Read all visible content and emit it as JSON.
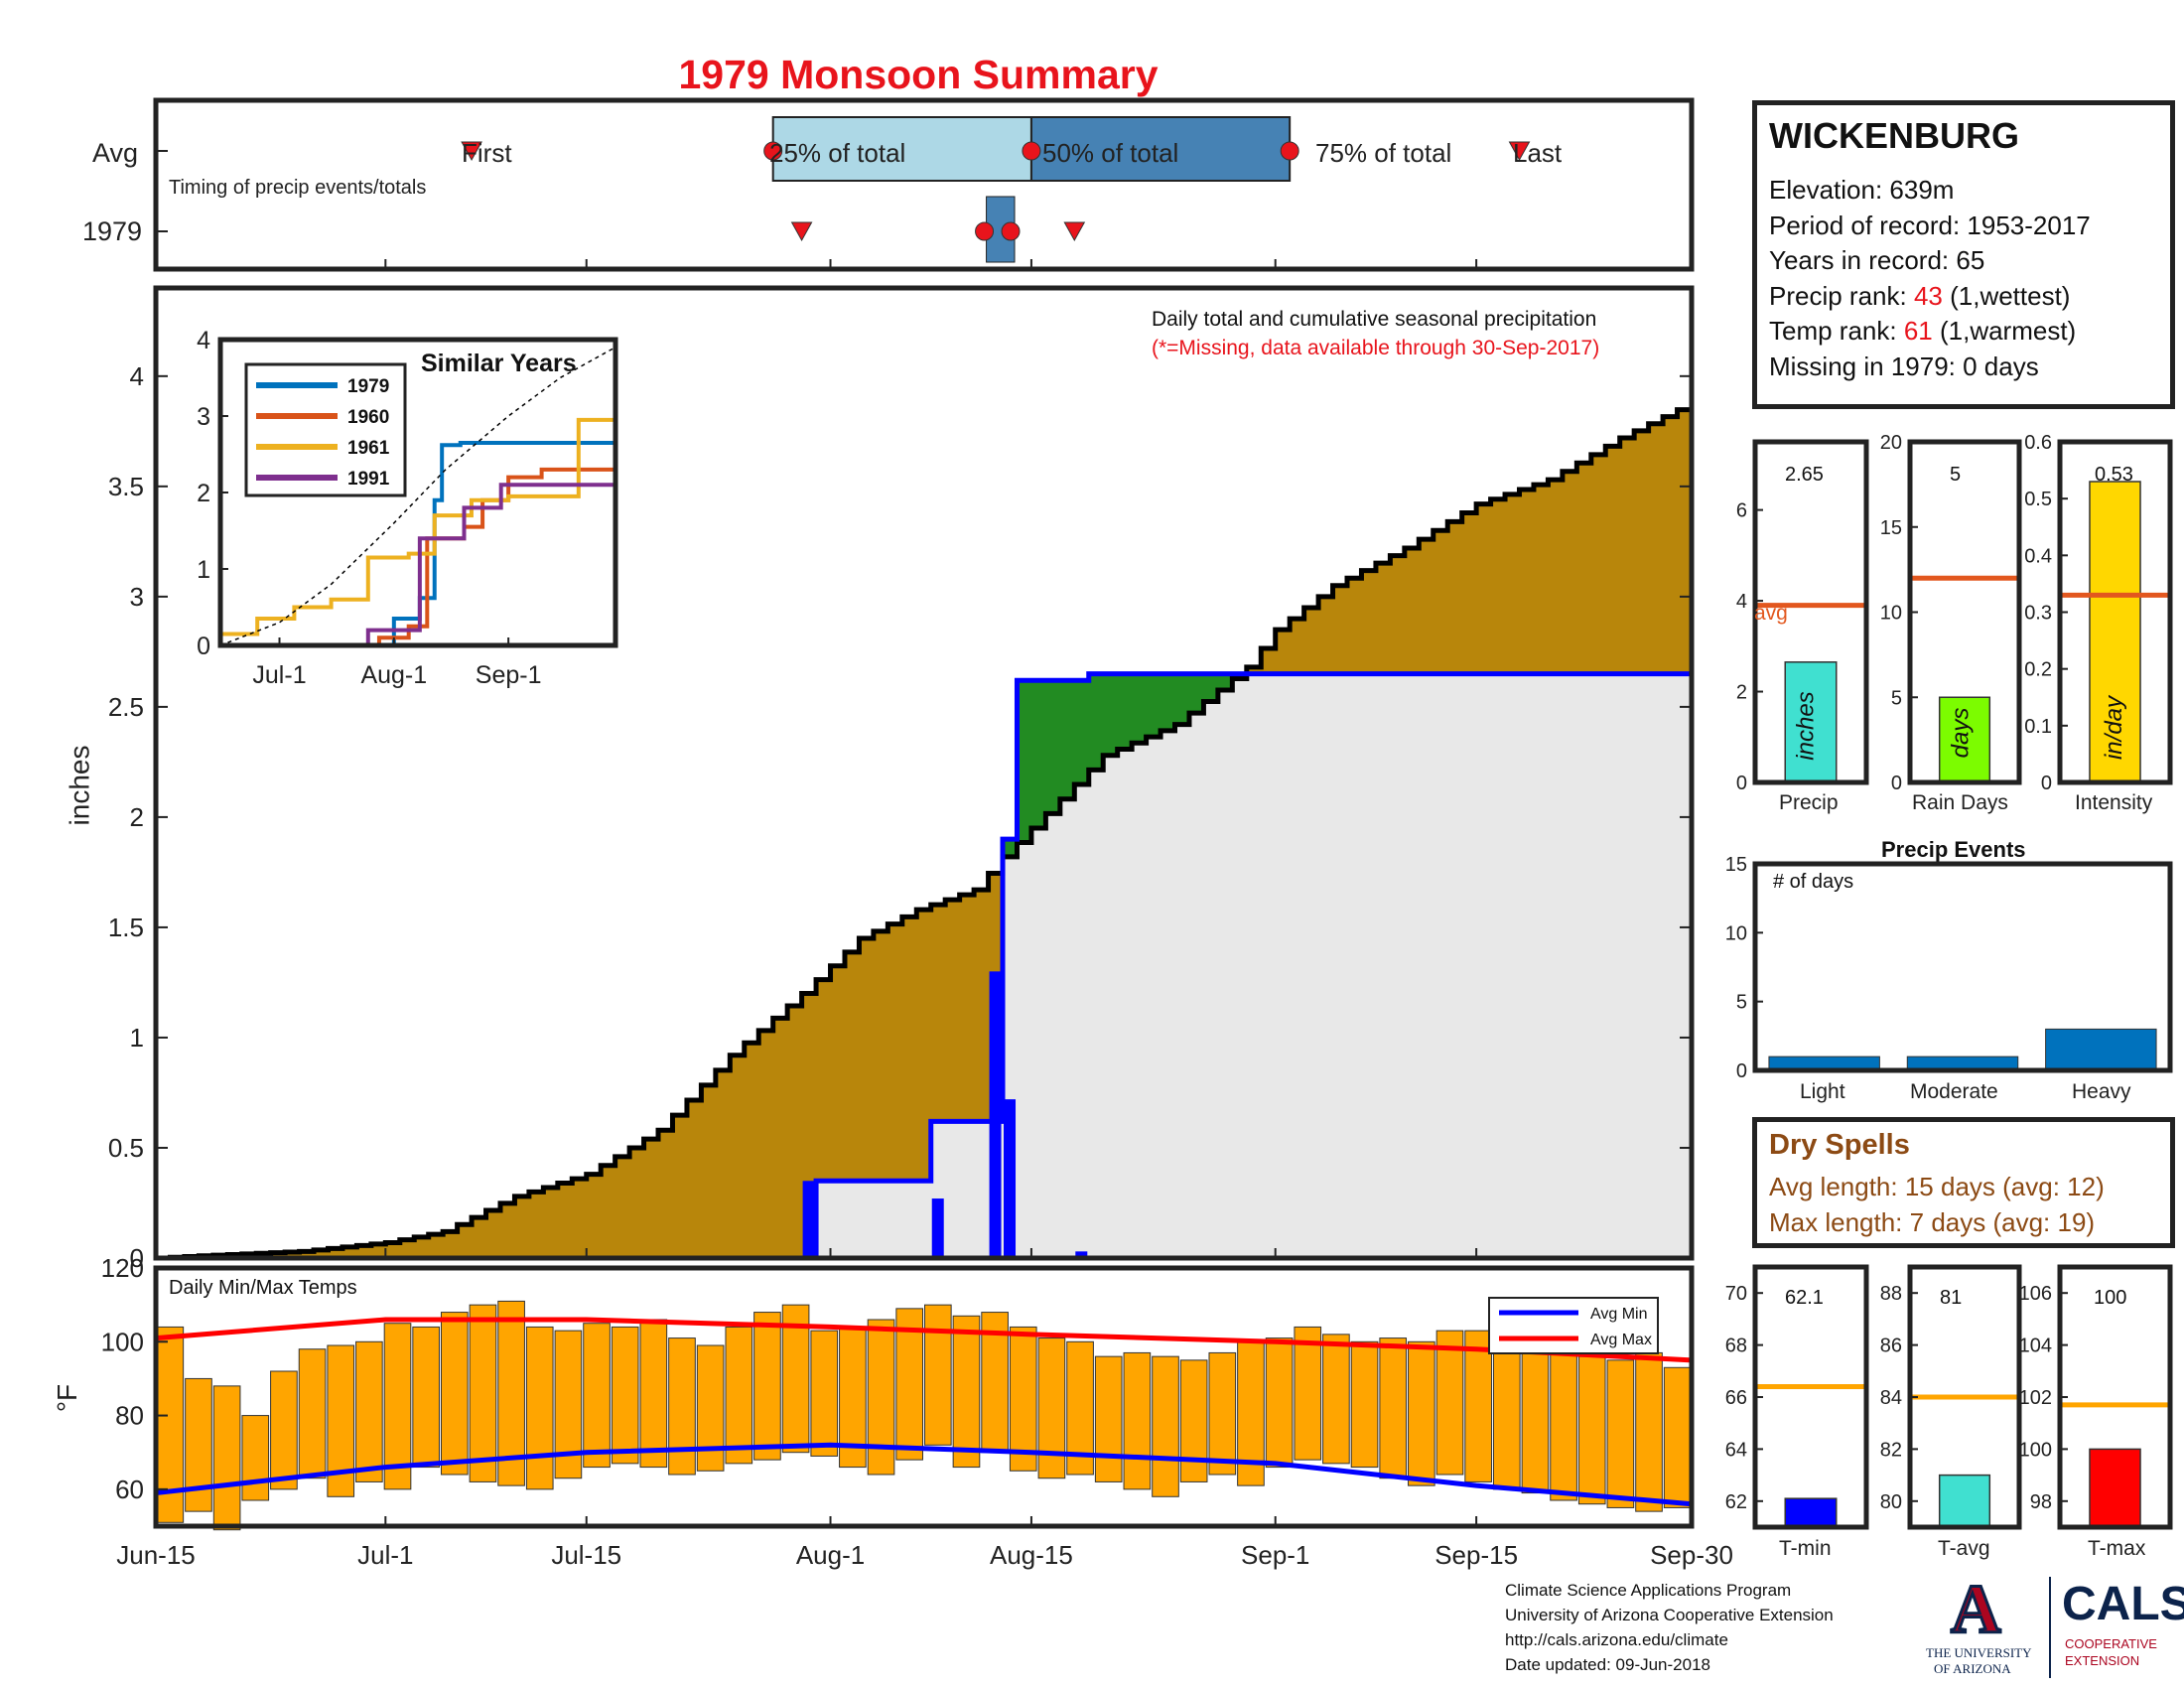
{
  "title": "1979 Monsoon Summary",
  "timing": {
    "row_labels": [
      "Avg",
      "1979"
    ],
    "subtitle": "Timing of precip events/totals",
    "avg_markers": {
      "first": "First",
      "p25": "25% of total",
      "p50": "50% of total",
      "p75": "75% of total",
      "last": "Last"
    },
    "avg_dates": {
      "first": "Jul-7",
      "p25": "Jul-28",
      "p50": "Aug-15",
      "p75": "Sep-2",
      "last": "Sep-18"
    },
    "year_dates": {
      "first": "Jul-30",
      "p25": "Aug-12",
      "p50": "Aug-13",
      "p75": "Aug-13",
      "last": "Aug-18"
    }
  },
  "station": {
    "name": "WICKENBURG",
    "elevation_label": "Elevation: 639m",
    "period_label": "Period of record: 1953-2017",
    "years_label": "Years in record: 65",
    "precip_rank_prefix": "Precip rank: ",
    "precip_rank": "43",
    "precip_rank_suffix": " (1,wettest)",
    "temp_rank_prefix": "Temp rank: ",
    "temp_rank": "61",
    "temp_rank_suffix": " (1,warmest)",
    "missing_label": "Missing in 1979: 0 days"
  },
  "colors": {
    "red": "#e8141c",
    "cum_avg_fill": "#b8860b",
    "above_fill": "#228b22",
    "below_fill": "#e8e8e8",
    "year_line": "#0000ff",
    "daily_bar": "#0000ff",
    "temp_bar": "#ffa500",
    "avg_line": "#e2571e",
    "tavg_line": "#ffa500",
    "light_blue": "#add8e6",
    "steel_blue": "#4682b4",
    "event_bar": "#0072bd",
    "s1979": "#0072bd",
    "s1960": "#d95319",
    "s1961": "#edb120",
    "s1991": "#7e2f8e",
    "dry_spells": "#8c4a14"
  },
  "main": {
    "ylabel": "inches",
    "annot1": "Daily total and cumulative seasonal precipitation",
    "annot2": "(*=Missing, data available through 30-Sep-2017)",
    "x_ticks": [
      "Jun-15",
      "Jul-1",
      "Jul-15",
      "Aug-1",
      "Aug-15",
      "Sep-1",
      "Sep-15",
      "Sep-30"
    ],
    "y_ticks": [
      "0",
      "0.5",
      "1",
      "1.5",
      "2",
      "2.5",
      "3",
      "3.5",
      "4"
    ]
  },
  "temps": {
    "label": "Daily Min/Max Temps",
    "ylabel": "°F",
    "y_ticks": [
      "60",
      "80",
      "100",
      "120"
    ],
    "legend": [
      "Avg Min",
      "Avg Max"
    ]
  },
  "inset": {
    "title": "Similar Years",
    "legend": [
      "1979",
      "1960",
      "1961",
      "1991"
    ],
    "x_ticks": [
      "Jul-1",
      "Aug-1",
      "Sep-1"
    ],
    "y_ticks": [
      "0",
      "1",
      "2",
      "3",
      "4"
    ]
  },
  "stats": [
    {
      "value_label": "2.65",
      "name": "Precip",
      "inside": "inches",
      "avg_label": "avg",
      "ticks": [
        "0",
        "2",
        "4",
        "6"
      ]
    },
    {
      "value_label": "5",
      "name": "Rain Days",
      "inside": "days",
      "ticks": [
        "0",
        "5",
        "10",
        "15",
        "20"
      ]
    },
    {
      "value_label": "0.53",
      "name": "Intensity",
      "inside": "in/day",
      "ticks": [
        "0",
        "0.1",
        "0.2",
        "0.3",
        "0.4",
        "0.5",
        "0.6"
      ]
    }
  ],
  "events": {
    "title": "Precip Events",
    "label": "# of days",
    "categories": [
      "Light",
      "Moderate",
      "Heavy"
    ],
    "ticks": [
      "0",
      "5",
      "10",
      "15"
    ]
  },
  "dry_spells": {
    "title": "Dry Spells",
    "avg_line": "Avg length: 15 days (avg: 12)",
    "max_line": "Max length: 7 days (avg: 19)"
  },
  "temp_stats": [
    {
      "value_label": "62.1",
      "name": "T-min",
      "ticks": [
        "62",
        "64",
        "66",
        "68",
        "70"
      ]
    },
    {
      "value_label": "81",
      "name": "T-avg",
      "ticks": [
        "80",
        "82",
        "84",
        "86",
        "88"
      ]
    },
    {
      "value_label": "100",
      "name": "T-max",
      "ticks": [
        "98",
        "100",
        "102",
        "104",
        "106"
      ]
    }
  ],
  "footer": {
    "line1": "Climate Science Applications Program",
    "line2": "University of Arizona Cooperative Extension",
    "line3": "http://cals.arizona.edu/climate",
    "line4": " Date updated: 09-Jun-2018"
  },
  "logo": {
    "ua_mark": "A",
    "ua_line1": "THE UNIVERSITY",
    "ua_line2": "OF ARIZONA",
    "cals": "CALS",
    "cals_line1": "COOPERATIVE",
    "cals_line2": "EXTENSION"
  },
  "chart_data": [
    {
      "type": "area",
      "title": "1979 Monsoon Summary",
      "xlabel": "",
      "ylabel": "inches",
      "x_range": [
        "Jun-15",
        "Sep-30"
      ],
      "ylim": [
        0,
        4.4
      ],
      "series": [
        {
          "name": "Daily total and cumulative seasonal precipitation",
          "points": [
            [
              "Jun-15",
              0
            ],
            [
              "Jun-18",
              0.01
            ],
            [
              "Jun-25",
              0.03
            ],
            [
              "Jul-1",
              0.07
            ],
            [
              "Jul-5",
              0.12
            ],
            [
              "Jul-10",
              0.28
            ],
            [
              "Jul-15",
              0.38
            ],
            [
              "Jul-20",
              0.58
            ],
            [
              "Jul-25",
              0.92
            ],
            [
              "Jul-30",
              1.2
            ],
            [
              "Aug-3",
              1.45
            ],
            [
              "Aug-7",
              1.58
            ],
            [
              "Aug-11",
              1.67
            ],
            [
              "Aug-13",
              1.82
            ],
            [
              "Aug-15",
              1.95
            ],
            [
              "Aug-20",
              2.28
            ],
            [
              "Aug-25",
              2.42
            ],
            [
              "Aug-30",
              2.68
            ],
            [
              "Sep-1",
              2.85
            ],
            [
              "Sep-5",
              3.05
            ],
            [
              "Sep-10",
              3.22
            ],
            [
              "Sep-15",
              3.42
            ],
            [
              "Sep-20",
              3.53
            ],
            [
              "Sep-25",
              3.72
            ],
            [
              "Sep-30",
              3.88
            ]
          ]
        },
        {
          "name": "1979 cumulative",
          "points": [
            [
              "Jun-15",
              0
            ],
            [
              "Jul-30",
              0
            ],
            [
              "Jul-31",
              0.35
            ],
            [
              "Aug-7",
              0.35
            ],
            [
              "Aug-8",
              0.62
            ],
            [
              "Aug-12",
              0.62
            ],
            [
              "Aug-13",
              1.9
            ],
            [
              "Aug-14",
              2.62
            ],
            [
              "Aug-18",
              2.62
            ],
            [
              "Aug-19",
              2.65
            ],
            [
              "Sep-30",
              2.65
            ]
          ]
        },
        {
          "name": "1979 daily",
          "points": [
            [
              "Jul-30",
              0.35
            ],
            [
              "Aug-8",
              0.27
            ],
            [
              "Aug-12",
              1.3
            ],
            [
              "Aug-13",
              0.72
            ],
            [
              "Aug-18",
              0.03
            ]
          ]
        }
      ]
    },
    {
      "type": "bar",
      "title": "Daily Min/Max Temps",
      "xlabel": "",
      "ylabel": "°F",
      "ylim": [
        50,
        120
      ],
      "series": [
        {
          "name": "Avg Min",
          "points": [
            [
              "Jun-15",
              59
            ],
            [
              "Jul-1",
              66
            ],
            [
              "Jul-15",
              70
            ],
            [
              "Aug-1",
              72
            ],
            [
              "Aug-15",
              70
            ],
            [
              "Sep-1",
              67
            ],
            [
              "Sep-15",
              61
            ],
            [
              "Sep-30",
              56
            ]
          ]
        },
        {
          "name": "Avg Max",
          "points": [
            [
              "Jun-15",
              101
            ],
            [
              "Jul-1",
              106
            ],
            [
              "Jul-15",
              106
            ],
            [
              "Aug-1",
              104
            ],
            [
              "Aug-15",
              102
            ],
            [
              "Sep-1",
              100
            ],
            [
              "Sep-15",
              98
            ],
            [
              "Sep-30",
              95
            ]
          ]
        },
        {
          "name": "Daily range",
          "min_approx": [
            51,
            54,
            49,
            57,
            60,
            63,
            58,
            62,
            60,
            66,
            64,
            62,
            61,
            60,
            63,
            66,
            67,
            66,
            64,
            65,
            67,
            68,
            70,
            69,
            66,
            64,
            68,
            72,
            66,
            70,
            65,
            63,
            64,
            62,
            60,
            58,
            62,
            64,
            61,
            66,
            68,
            67,
            66,
            63,
            61,
            64,
            62,
            60,
            59,
            57,
            56,
            55,
            54,
            55
          ],
          "max_approx": [
            104,
            90,
            88,
            80,
            92,
            98,
            99,
            100,
            105,
            104,
            108,
            110,
            111,
            104,
            103,
            105,
            104,
            106,
            101,
            99,
            104,
            108,
            110,
            103,
            104,
            106,
            109,
            110,
            107,
            108,
            104,
            101,
            100,
            96,
            97,
            96,
            95,
            97,
            100,
            101,
            104,
            102,
            100,
            101,
            100,
            103,
            103,
            100,
            100,
            98,
            96,
            95,
            97,
            93
          ]
        }
      ]
    },
    {
      "type": "line",
      "title": "Similar Years",
      "xlabel": "",
      "ylabel": "",
      "ylim": [
        0,
        4
      ],
      "series": [
        {
          "name": "1979",
          "points": [
            [
              "Jun-15",
              0
            ],
            [
              "Jul-31",
              0
            ],
            [
              "Aug-1",
              0.35
            ],
            [
              "Aug-8",
              0.62
            ],
            [
              "Aug-12",
              1.9
            ],
            [
              "Aug-14",
              2.62
            ],
            [
              "Aug-19",
              2.65
            ],
            [
              "Sep-30",
              2.65
            ]
          ]
        },
        {
          "name": "1960",
          "points": [
            [
              "Jun-15",
              0
            ],
            [
              "Jul-20",
              0
            ],
            [
              "Jul-28",
              0.1
            ],
            [
              "Aug-5",
              0.25
            ],
            [
              "Aug-10",
              1.4
            ],
            [
              "Aug-20",
              1.55
            ],
            [
              "Aug-25",
              1.9
            ],
            [
              "Sep-1",
              2.2
            ],
            [
              "Sep-10",
              2.3
            ],
            [
              "Sep-30",
              2.35
            ]
          ]
        },
        {
          "name": "1961",
          "points": [
            [
              "Jun-15",
              0.15
            ],
            [
              "Jun-25",
              0.35
            ],
            [
              "Jul-5",
              0.5
            ],
            [
              "Jul-15",
              0.6
            ],
            [
              "Jul-25",
              1.15
            ],
            [
              "Aug-5",
              1.2
            ],
            [
              "Aug-12",
              1.7
            ],
            [
              "Aug-22",
              1.9
            ],
            [
              "Sep-1",
              1.95
            ],
            [
              "Sep-15",
              1.95
            ],
            [
              "Sep-20",
              2.95
            ],
            [
              "Sep-30",
              2.95
            ]
          ]
        },
        {
          "name": "1991",
          "points": [
            [
              "Jun-15",
              0
            ],
            [
              "Jul-20",
              0
            ],
            [
              "Jul-25",
              0.2
            ],
            [
              "Aug-8",
              1.4
            ],
            [
              "Aug-20",
              1.8
            ],
            [
              "Aug-30",
              2.1
            ],
            [
              "Sep-30",
              2.15
            ]
          ]
        },
        {
          "name": "Avg",
          "points": [
            [
              "Jun-15",
              0
            ],
            [
              "Jul-1",
              0.3
            ],
            [
              "Jul-15",
              0.8
            ],
            [
              "Aug-1",
              1.6
            ],
            [
              "Aug-15",
              2.3
            ],
            [
              "Sep-1",
              3
            ],
            [
              "Sep-15",
              3.5
            ],
            [
              "Sep-30",
              3.9
            ]
          ]
        }
      ]
    },
    {
      "type": "bar",
      "title": "",
      "categories": [
        "Precip",
        "Rain Days",
        "Intensity"
      ],
      "values": [
        2.65,
        5,
        0.53
      ],
      "averages": [
        3.9,
        12,
        0.33
      ],
      "ylims": [
        [
          0,
          7.5
        ],
        [
          0,
          20
        ],
        [
          0,
          0.6
        ]
      ]
    },
    {
      "type": "bar",
      "title": "Precip Events",
      "categories": [
        "Light",
        "Moderate",
        "Heavy"
      ],
      "values": [
        1,
        1,
        3
      ],
      "ylim": [
        0,
        15
      ]
    },
    {
      "type": "bar",
      "title": "",
      "categories": [
        "T-min",
        "T-avg",
        "T-max"
      ],
      "values": [
        62.1,
        81,
        100
      ],
      "averages": [
        66.4,
        84,
        101.7
      ],
      "ylims": [
        [
          61,
          71
        ],
        [
          79,
          89
        ],
        [
          97,
          107
        ]
      ]
    }
  ]
}
